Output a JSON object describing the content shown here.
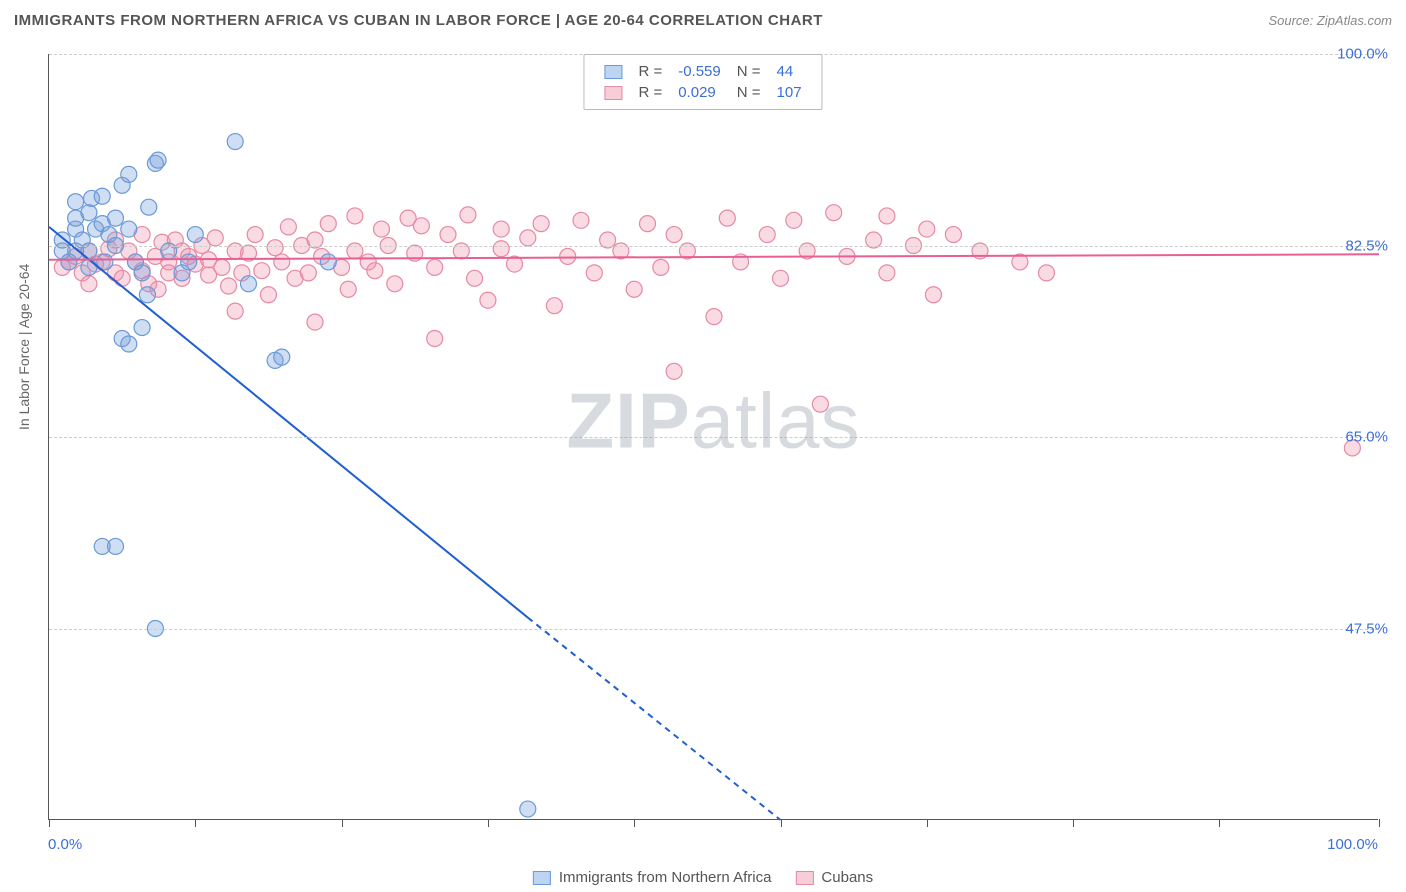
{
  "title": "IMMIGRANTS FROM NORTHERN AFRICA VS CUBAN IN LABOR FORCE | AGE 20-64 CORRELATION CHART",
  "source": "Source: ZipAtlas.com",
  "y_axis_label": "In Labor Force | Age 20-64",
  "watermark_bold": "ZIP",
  "watermark_rest": "atlas",
  "chart": {
    "type": "scatter",
    "background_color": "#ffffff",
    "grid_color": "#cccccc",
    "axis_color": "#555555",
    "title_color": "#555555",
    "title_fontsize": 15,
    "label_fontsize": 14,
    "tick_fontsize": 15,
    "xlim": [
      0,
      100
    ],
    "ylim": [
      30,
      100
    ],
    "x_ticks": [
      0,
      11,
      22,
      33,
      44,
      55,
      66,
      77,
      88,
      100
    ],
    "x_tick_labels": {
      "0": "0.0%",
      "100": "100.0%"
    },
    "y_grid": [
      47.5,
      65.0,
      82.5,
      100.0
    ],
    "y_tick_labels": [
      "47.5%",
      "65.0%",
      "82.5%",
      "100.0%"
    ],
    "x_label_color": "#3b6fd6",
    "y_label_color": "#3b6fd6",
    "series": [
      {
        "name": "Immigrants from Northern Africa",
        "color_fill": "rgba(120,160,220,0.35)",
        "color_stroke": "#6a9ad8",
        "swatch_fill": "#bdd4f2",
        "swatch_border": "#6a9ad8",
        "trend_color": "#1f5fd0",
        "trend_width": 2,
        "r_value": "-0.559",
        "n_value": "44",
        "marker_radius": 8,
        "points": [
          [
            1,
            82
          ],
          [
            1,
            83
          ],
          [
            1.5,
            81
          ],
          [
            2,
            84
          ],
          [
            2,
            85
          ],
          [
            2,
            86.5
          ],
          [
            2.5,
            83
          ],
          [
            3,
            82
          ],
          [
            3,
            80.5
          ],
          [
            3,
            85.5
          ],
          [
            3.5,
            84
          ],
          [
            3.2,
            86.8
          ],
          [
            4,
            87
          ],
          [
            4,
            84.5
          ],
          [
            4.2,
            81
          ],
          [
            4.5,
            83.5
          ],
          [
            5,
            82.5
          ],
          [
            5,
            85
          ],
          [
            5.5,
            88
          ],
          [
            6,
            84
          ],
          [
            6,
            89
          ],
          [
            6.5,
            81
          ],
          [
            7,
            80
          ],
          [
            7.4,
            78
          ],
          [
            7.5,
            86
          ],
          [
            4,
            55
          ],
          [
            5,
            55
          ],
          [
            5.5,
            74
          ],
          [
            6,
            73.5
          ],
          [
            7,
            75
          ],
          [
            8,
            90
          ],
          [
            8.2,
            90.3
          ],
          [
            8,
            47.5
          ],
          [
            9,
            82
          ],
          [
            10,
            80
          ],
          [
            10.5,
            81
          ],
          [
            11,
            83.5
          ],
          [
            14,
            92
          ],
          [
            15,
            79
          ],
          [
            17,
            72
          ],
          [
            17.5,
            72.3
          ],
          [
            21,
            81
          ],
          [
            36,
            31
          ],
          [
            2.0,
            82.0
          ]
        ],
        "trend": {
          "x1": 0,
          "y1": 84.2,
          "x2_solid": 36,
          "y2_solid": 48.5,
          "x2_dash": 55,
          "y2_dash": 30
        }
      },
      {
        "name": "Cubans",
        "color_fill": "rgba(240,150,175,0.35)",
        "color_stroke": "#e58aa4",
        "swatch_fill": "#f7cdd8",
        "swatch_border": "#e58aa4",
        "trend_color": "#e85f93",
        "trend_width": 2,
        "r_value": "0.029",
        "n_value": "107",
        "marker_radius": 8,
        "points": [
          [
            1,
            80.5
          ],
          [
            1.5,
            81
          ],
          [
            2,
            81.5
          ],
          [
            2.5,
            80
          ],
          [
            3,
            82
          ],
          [
            3,
            79
          ],
          [
            3.5,
            80.8
          ],
          [
            4,
            81
          ],
          [
            4.5,
            82.2
          ],
          [
            5,
            80
          ],
          [
            5,
            83
          ],
          [
            5.5,
            79.5
          ],
          [
            6,
            82
          ],
          [
            6.5,
            81
          ],
          [
            7,
            80.2
          ],
          [
            7,
            83.5
          ],
          [
            7.5,
            79
          ],
          [
            8,
            81.5
          ],
          [
            8.2,
            78.5
          ],
          [
            8.5,
            82.8
          ],
          [
            9,
            81
          ],
          [
            9,
            80
          ],
          [
            9.5,
            83
          ],
          [
            10,
            82
          ],
          [
            10,
            79.5
          ],
          [
            10.5,
            81.5
          ],
          [
            11,
            80.8
          ],
          [
            11.5,
            82.5
          ],
          [
            12,
            79.8
          ],
          [
            12,
            81.2
          ],
          [
            12.5,
            83.2
          ],
          [
            13,
            80.5
          ],
          [
            13.5,
            78.8
          ],
          [
            14,
            82
          ],
          [
            14,
            76.5
          ],
          [
            14.5,
            80
          ],
          [
            15,
            81.8
          ],
          [
            15.5,
            83.5
          ],
          [
            16,
            80.2
          ],
          [
            16.5,
            78
          ],
          [
            17,
            82.3
          ],
          [
            17.5,
            81
          ],
          [
            18,
            84.2
          ],
          [
            18.5,
            79.5
          ],
          [
            19,
            82.5
          ],
          [
            19.5,
            80
          ],
          [
            20,
            83
          ],
          [
            20,
            75.5
          ],
          [
            20.5,
            81.5
          ],
          [
            21,
            84.5
          ],
          [
            22,
            80.5
          ],
          [
            22.5,
            78.5
          ],
          [
            23,
            85.2
          ],
          [
            23,
            82
          ],
          [
            24,
            81
          ],
          [
            24.5,
            80.2
          ],
          [
            25,
            84
          ],
          [
            25.5,
            82.5
          ],
          [
            26,
            79
          ],
          [
            27,
            85
          ],
          [
            27.5,
            81.8
          ],
          [
            28,
            84.3
          ],
          [
            29,
            80.5
          ],
          [
            29,
            74
          ],
          [
            30,
            83.5
          ],
          [
            31,
            82
          ],
          [
            31.5,
            85.3
          ],
          [
            32,
            79.5
          ],
          [
            33,
            77.5
          ],
          [
            34,
            84
          ],
          [
            34,
            82.2
          ],
          [
            35,
            80.8
          ],
          [
            36,
            83.2
          ],
          [
            37,
            84.5
          ],
          [
            38,
            77
          ],
          [
            39,
            81.5
          ],
          [
            40,
            84.8
          ],
          [
            41,
            80
          ],
          [
            42,
            83
          ],
          [
            43,
            82
          ],
          [
            44,
            78.5
          ],
          [
            45,
            84.5
          ],
          [
            46,
            80.5
          ],
          [
            47,
            83.5
          ],
          [
            47,
            71
          ],
          [
            48,
            82
          ],
          [
            50,
            76
          ],
          [
            51,
            85
          ],
          [
            52,
            81
          ],
          [
            54,
            83.5
          ],
          [
            55,
            79.5
          ],
          [
            56,
            84.8
          ],
          [
            57,
            82
          ],
          [
            58,
            68
          ],
          [
            59,
            85.5
          ],
          [
            60,
            81.5
          ],
          [
            62,
            83
          ],
          [
            63,
            80
          ],
          [
            63,
            85.2
          ],
          [
            65,
            82.5
          ],
          [
            66,
            84
          ],
          [
            66.5,
            78
          ],
          [
            68,
            83.5
          ],
          [
            70,
            82
          ],
          [
            73,
            81
          ],
          [
            75,
            80
          ],
          [
            98,
            64
          ]
        ],
        "trend": {
          "x1": 0,
          "y1": 81.2,
          "x2_solid": 100,
          "y2_solid": 81.7,
          "x2_dash": 100,
          "y2_dash": 81.7
        }
      }
    ],
    "legend_labels": {
      "r": "R =",
      "n": "N ="
    },
    "legend_value_color": "#3b6fd6",
    "legend_label_color": "#555555"
  }
}
